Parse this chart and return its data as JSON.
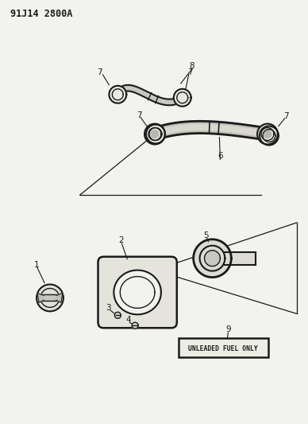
{
  "title": "91J14 2800A",
  "background_color": "#f2f2ee",
  "line_color": "#1a1a1a",
  "text_color": "#1a1a1a",
  "fig_width": 3.88,
  "fig_height": 5.33,
  "dpi": 100
}
